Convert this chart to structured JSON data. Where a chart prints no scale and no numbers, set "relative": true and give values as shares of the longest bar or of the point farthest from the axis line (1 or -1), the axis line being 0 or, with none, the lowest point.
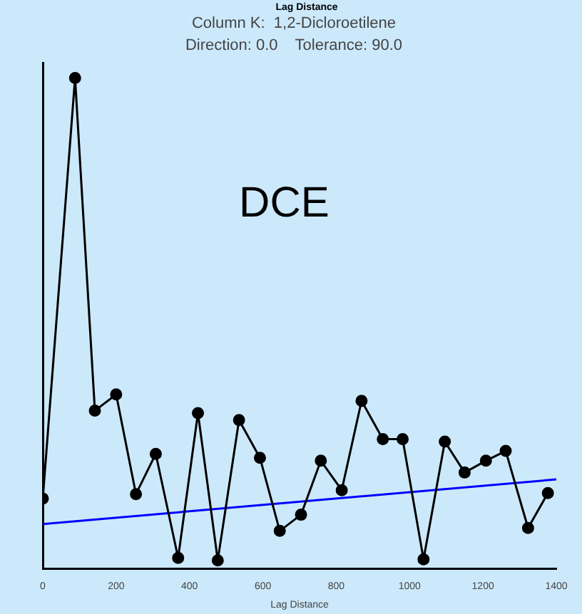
{
  "chart_data": {
    "type": "line",
    "title": "Column K:  1,2-Dicloroetilene",
    "subtitle": "Direction: 0.0    Tolerance: 90.0",
    "xlabel": "Lag Distance",
    "relative": true,
    "xlim": [
      0,
      1400
    ],
    "xticks": [
      0,
      200,
      400,
      600,
      800,
      1000,
      1200,
      1400
    ],
    "grid": false,
    "legend": false,
    "marker": "circle",
    "line_style": "solid",
    "annotations": [
      "Lag Distance",
      "DCE"
    ],
    "series": [
      {
        "color": "#000000",
        "x": [
          0,
          88,
          142,
          200,
          254,
          308,
          369,
          423,
          477,
          535,
          592,
          646,
          704,
          758,
          815,
          869,
          927,
          981,
          1038,
          1096,
          1150,
          1208,
          1262,
          1323,
          1377
        ],
        "values": [
          0.143,
          1,
          0.322,
          0.355,
          0.152,
          0.234,
          0.022,
          0.317,
          0.017,
          0.303,
          0.226,
          0.077,
          0.11,
          0.22,
          0.16,
          0.342,
          0.264,
          0.264,
          0.019,
          0.259,
          0.196,
          0.22,
          0.24,
          0.083,
          0.154
        ]
      },
      {
        "color": "#0000ff",
        "marker": "none",
        "x": [
          0,
          1400
        ],
        "values": [
          0.091,
          0.182
        ]
      }
    ]
  }
}
